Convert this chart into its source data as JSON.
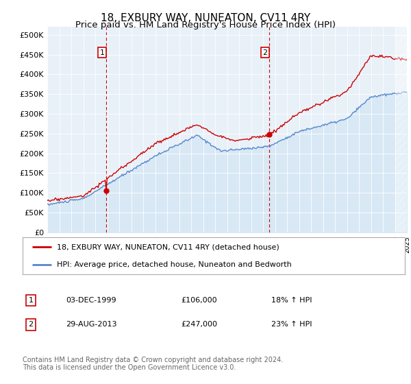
{
  "title": "18, EXBURY WAY, NUNEATON, CV11 4RY",
  "subtitle": "Price paid vs. HM Land Registry's House Price Index (HPI)",
  "ylim": [
    0,
    520000
  ],
  "yticks": [
    0,
    50000,
    100000,
    150000,
    200000,
    250000,
    300000,
    350000,
    400000,
    450000,
    500000
  ],
  "ytick_labels": [
    "£0",
    "£50K",
    "£100K",
    "£150K",
    "£200K",
    "£250K",
    "£300K",
    "£350K",
    "£400K",
    "£450K",
    "£500K"
  ],
  "price_paid_color": "#cc0000",
  "hpi_color": "#5588cc",
  "hpi_fill_color": "#d8e8f5",
  "plot_bg_color": "#e8f0f8",
  "vline_color": "#cc0000",
  "legend_price": "18, EXBURY WAY, NUNEATON, CV11 4RY (detached house)",
  "legend_hpi": "HPI: Average price, detached house, Nuneaton and Bedworth",
  "note1_label": "1",
  "note1_date": "03-DEC-1999",
  "note1_price": "£106,000",
  "note1_hpi": "18% ↑ HPI",
  "note2_label": "2",
  "note2_date": "29-AUG-2013",
  "note2_price": "£247,000",
  "note2_hpi": "23% ↑ HPI",
  "footer": "Contains HM Land Registry data © Crown copyright and database right 2024.\nThis data is licensed under the Open Government Licence v3.0.",
  "title_fontsize": 11,
  "subtitle_fontsize": 9.5
}
